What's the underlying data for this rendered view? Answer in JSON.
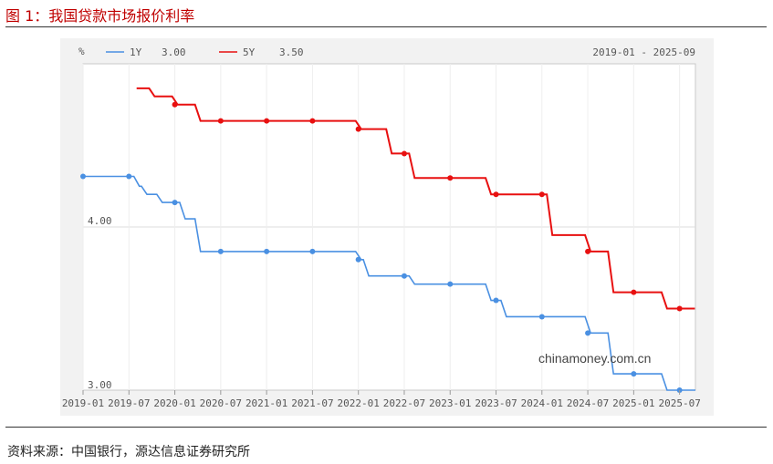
{
  "figure": {
    "title": "图 1：我国贷款市场报价利率",
    "source": "资料来源：中国银行，源达信息证券研究所"
  },
  "chart_data": {
    "type": "line",
    "unit_label": "%",
    "range_label": "2019-01 - 2025-09",
    "watermark": "chinamoney.com.cn",
    "y_ticks": [
      "4.00",
      "3.00"
    ],
    "ylim": [
      3.0,
      4.85
    ],
    "x_ticks": [
      "2019-01",
      "2019-07",
      "2020-01",
      "2020-07",
      "2021-01",
      "2021-07",
      "2022-01",
      "2022-07",
      "2023-01",
      "2023-07",
      "2024-01",
      "2024-07",
      "2025-01",
      "2025-07"
    ],
    "grid": true,
    "legend_position": "top-left",
    "series": [
      {
        "name": "1Y",
        "legend_value": "3.00",
        "color": "#4a90e2",
        "steps": [
          [
            "2019-01",
            4.31
          ],
          [
            "2019-08",
            4.25
          ],
          [
            "2019-09",
            4.2
          ],
          [
            "2019-11",
            4.15
          ],
          [
            "2020-02",
            4.05
          ],
          [
            "2020-04",
            3.85
          ],
          [
            "2022-01",
            3.8
          ],
          [
            "2022-02",
            3.7
          ],
          [
            "2022-08",
            3.65
          ],
          [
            "2023-06",
            3.55
          ],
          [
            "2023-08",
            3.45
          ],
          [
            "2024-07",
            3.35
          ],
          [
            "2024-10",
            3.1
          ],
          [
            "2025-05",
            3.0
          ]
        ],
        "markers": [
          "2019-01",
          "2019-07",
          "2020-01",
          "2020-07",
          "2021-01",
          "2021-07",
          "2022-01",
          "2022-07",
          "2023-01",
          "2023-07",
          "2024-01",
          "2024-07",
          "2025-01",
          "2025-07"
        ]
      },
      {
        "name": "5Y",
        "legend_value": "3.50",
        "color": "#e81010",
        "steps": [
          [
            "2019-08",
            4.85
          ],
          [
            "2019-10",
            4.8
          ],
          [
            "2020-01",
            4.75
          ],
          [
            "2020-04",
            4.65
          ],
          [
            "2022-01",
            4.6
          ],
          [
            "2022-05",
            4.45
          ],
          [
            "2022-08",
            4.3
          ],
          [
            "2023-06",
            4.2
          ],
          [
            "2024-02",
            3.95
          ],
          [
            "2024-07",
            3.85
          ],
          [
            "2024-10",
            3.6
          ],
          [
            "2025-05",
            3.5
          ]
        ],
        "end": "2025-09",
        "markers": [
          "2020-01",
          "2020-07",
          "2021-01",
          "2021-07",
          "2022-01",
          "2022-07",
          "2023-01",
          "2023-07",
          "2024-01",
          "2024-07",
          "2025-01",
          "2025-07"
        ]
      }
    ]
  }
}
